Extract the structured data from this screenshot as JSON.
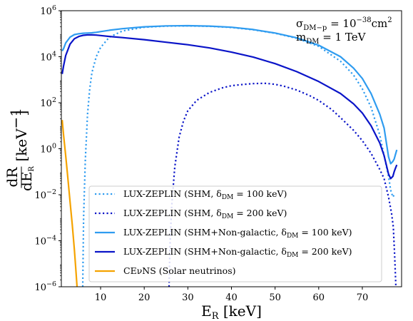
{
  "chart_data": {
    "type": "line",
    "xlabel": "E_R [keV]",
    "ylabel": "dR/dE_R [keV^-1]",
    "xlim": [
      1,
      79
    ],
    "ylim_log10": [
      -6,
      6
    ],
    "yscale": "log",
    "x_ticks": [
      10,
      20,
      30,
      40,
      50,
      60,
      70
    ],
    "y_ticks_log10": [
      -6,
      -4,
      -2,
      0,
      2,
      4,
      6
    ],
    "y_tick_labels": [
      "10^-6",
      "10^-4",
      "10^-2",
      "10^0",
      "10^2",
      "10^4",
      "10^6"
    ],
    "annotation": [
      "σ_DM-p = 10^-38 cm^2",
      "m_DM = 1 TeV"
    ],
    "legend_position": "lower-center",
    "series": [
      {
        "name": "LUX-ZEPLIN (SHM, δ_DM = 100 keV)",
        "color": "#2f9cf0",
        "dash": "dotted",
        "x": [
          5.9,
          6.1,
          6.5,
          7,
          7.5,
          8,
          9,
          10,
          12,
          15,
          20,
          25,
          30,
          35,
          40,
          45,
          50,
          55,
          60,
          65,
          68,
          70,
          72,
          74,
          75,
          76,
          76.5,
          77,
          77.3
        ],
        "log10_y": [
          -6,
          -3,
          -0.5,
          1.5,
          2.6,
          3.3,
          4.0,
          4.4,
          4.85,
          5.12,
          5.28,
          5.33,
          5.34,
          5.32,
          5.27,
          5.17,
          5.02,
          4.8,
          4.45,
          3.8,
          3.2,
          2.6,
          1.8,
          0.6,
          -0.3,
          -1.2,
          -1.8,
          -2.1,
          -2.0
        ]
      },
      {
        "name": "LUX-ZEPLIN (SHM, δ_DM = 200 keV)",
        "color": "#0a14c8",
        "dash": "dotted",
        "x": [
          25.7,
          25.9,
          26.3,
          27,
          28,
          29,
          30,
          32,
          35,
          38,
          40,
          43,
          45,
          47,
          48,
          50,
          52,
          55,
          58,
          60,
          63,
          65,
          68,
          70,
          72,
          74,
          75,
          76,
          76.7,
          77.1,
          77.4,
          77.7
        ],
        "log10_y": [
          -6,
          -4.2,
          -2.5,
          -0.8,
          0.5,
          1.2,
          1.65,
          2.1,
          2.45,
          2.65,
          2.74,
          2.8,
          2.83,
          2.84,
          2.84,
          2.8,
          2.72,
          2.55,
          2.3,
          2.1,
          1.7,
          1.35,
          0.8,
          0.35,
          -0.2,
          -0.9,
          -1.3,
          -2.1,
          -2.8,
          -3.4,
          -4.6,
          -6
        ]
      },
      {
        "name": "LUX-ZEPLIN (SHM+Non-galactic, δ_DM = 100 keV)",
        "color": "#2f9cf0",
        "dash": "solid",
        "x": [
          1.2,
          1.5,
          2,
          3,
          4,
          5,
          6,
          7,
          8,
          9,
          10,
          12,
          15,
          20,
          25,
          30,
          35,
          40,
          45,
          50,
          55,
          60,
          65,
          68,
          70,
          72,
          74,
          75,
          76,
          76.5,
          77,
          77.3,
          77.6,
          77.9
        ],
        "log10_y": [
          4.25,
          4.35,
          4.6,
          4.85,
          4.96,
          5.0,
          5.02,
          5.03,
          5.04,
          5.06,
          5.09,
          5.15,
          5.22,
          5.3,
          5.34,
          5.35,
          5.33,
          5.28,
          5.18,
          5.03,
          4.82,
          4.5,
          4.0,
          3.5,
          3.05,
          2.4,
          1.5,
          0.9,
          -0.35,
          -0.65,
          -0.55,
          -0.45,
          -0.25,
          -0.05
        ]
      },
      {
        "name": "LUX-ZEPLIN (SHM+Non-galactic, δ_DM = 200 keV)",
        "color": "#0a14c8",
        "dash": "solid",
        "x": [
          1.2,
          1.5,
          2,
          3,
          4,
          5,
          6,
          7,
          8,
          9,
          10,
          12,
          15,
          20,
          25,
          30,
          35,
          40,
          45,
          50,
          55,
          60,
          65,
          68,
          70,
          72,
          74,
          75,
          76,
          76.5,
          77,
          77.3,
          77.6,
          77.9
        ],
        "log10_y": [
          3.25,
          3.6,
          4.05,
          4.55,
          4.78,
          4.88,
          4.93,
          4.95,
          4.95,
          4.94,
          4.92,
          4.88,
          4.83,
          4.74,
          4.63,
          4.52,
          4.38,
          4.2,
          3.98,
          3.7,
          3.35,
          2.92,
          2.4,
          1.95,
          1.55,
          1.0,
          0.25,
          -0.3,
          -1.1,
          -1.3,
          -1.2,
          -1.0,
          -0.85,
          -0.7
        ]
      },
      {
        "name": "CEνNS (Solar neutrinos)",
        "color": "#f5a300",
        "dash": "solid",
        "x": [
          1.2,
          1.5,
          2,
          2.5,
          3,
          3.5,
          4,
          4.3,
          4.6
        ],
        "log10_y": [
          1.25,
          0.6,
          -0.3,
          -1.3,
          -2.3,
          -3.3,
          -4.4,
          -5.2,
          -6
        ]
      }
    ]
  }
}
